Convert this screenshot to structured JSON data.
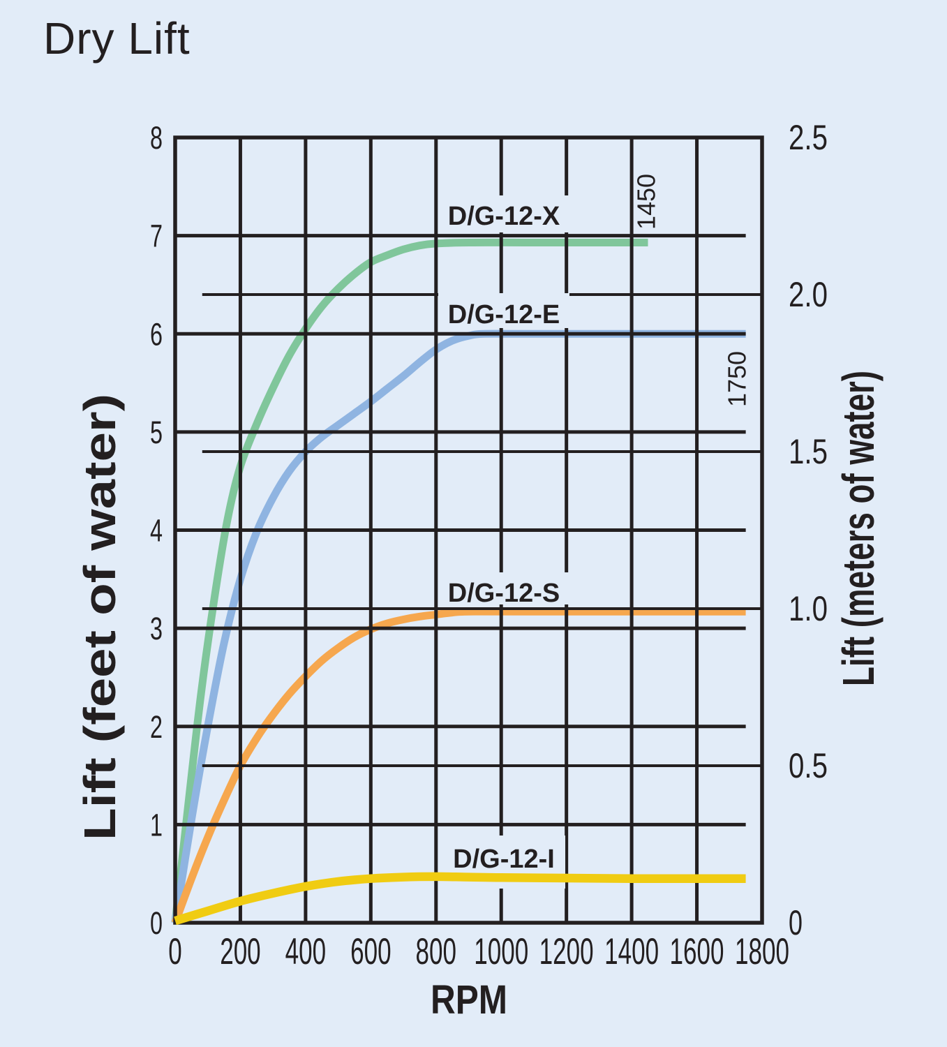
{
  "page": {
    "title": "Dry Lift"
  },
  "colors": {
    "background": "#e2ecf8",
    "ink": "#231f20",
    "green": "#80c69b",
    "blue": "#8fb4e1",
    "orange": "#f6a74e",
    "yellow": "#f0cc12"
  },
  "chart_data": {
    "type": "line",
    "title": "Dry Lift",
    "xlabel": "RPM",
    "ylabel_left": "Lift (feet of water)",
    "ylabel_right": "Lift (meters of water)",
    "xlim": [
      0,
      1800
    ],
    "ylim_left_feet": [
      0,
      8
    ],
    "ylim_right_meters": [
      0,
      2.5
    ],
    "x_ticks": [
      "0",
      "200",
      "400",
      "600",
      "800",
      "1000",
      "1200",
      "1400",
      "1600",
      "1800"
    ],
    "y_ticks_left_feet": [
      "8",
      "7",
      "6",
      "5",
      "4",
      "3",
      "2",
      "1",
      "0"
    ],
    "y_ticks_right_meters": [
      "2.5",
      "2.0",
      "1.5",
      "1.0",
      "0.5",
      "0"
    ],
    "grid": {
      "x_step_rpm": 200,
      "feet_lines": [
        1,
        2,
        3,
        4,
        5,
        6,
        7
      ],
      "meter_lines": [
        0.5,
        1.0,
        1.5,
        2.0
      ],
      "feet_lines_end_rpm": 1750,
      "meter_lines_start_rpm": 83,
      "grid_on": true,
      "legend_position": "inline-curve-labels"
    },
    "series": [
      {
        "name": "D/G-12-X",
        "color_key": "green",
        "end_rpm_label": "1450",
        "plateau_feet": 6.93,
        "points_rpm_feet": [
          [
            0,
            0
          ],
          [
            40,
            1.2
          ],
          [
            80,
            2.35
          ],
          [
            120,
            3.3
          ],
          [
            160,
            4.1
          ],
          [
            200,
            4.65
          ],
          [
            250,
            5.08
          ],
          [
            300,
            5.45
          ],
          [
            350,
            5.78
          ],
          [
            400,
            6.05
          ],
          [
            450,
            6.28
          ],
          [
            500,
            6.46
          ],
          [
            550,
            6.61
          ],
          [
            600,
            6.73
          ],
          [
            650,
            6.8
          ],
          [
            700,
            6.86
          ],
          [
            750,
            6.9
          ],
          [
            800,
            6.92
          ],
          [
            900,
            6.93
          ],
          [
            1100,
            6.93
          ],
          [
            1450,
            6.93
          ]
        ]
      },
      {
        "name": "D/G-12-E",
        "color_key": "blue",
        "end_rpm_label": "1750",
        "plateau_feet": 6.0,
        "points_rpm_feet": [
          [
            0,
            0
          ],
          [
            50,
            1.05
          ],
          [
            100,
            2.0
          ],
          [
            150,
            2.85
          ],
          [
            200,
            3.5
          ],
          [
            250,
            3.98
          ],
          [
            300,
            4.33
          ],
          [
            350,
            4.6
          ],
          [
            400,
            4.8
          ],
          [
            450,
            4.95
          ],
          [
            500,
            5.07
          ],
          [
            550,
            5.19
          ],
          [
            600,
            5.31
          ],
          [
            650,
            5.44
          ],
          [
            700,
            5.57
          ],
          [
            750,
            5.71
          ],
          [
            800,
            5.84
          ],
          [
            850,
            5.93
          ],
          [
            900,
            5.98
          ],
          [
            950,
            6.0
          ],
          [
            1100,
            6.0
          ],
          [
            1750,
            6.0
          ]
        ]
      },
      {
        "name": "D/G-12-S",
        "color_key": "orange",
        "end_rpm_label": null,
        "plateau_feet": 3.17,
        "points_rpm_feet": [
          [
            0,
            0
          ],
          [
            50,
            0.45
          ],
          [
            100,
            0.87
          ],
          [
            150,
            1.25
          ],
          [
            200,
            1.6
          ],
          [
            250,
            1.88
          ],
          [
            300,
            2.12
          ],
          [
            350,
            2.33
          ],
          [
            400,
            2.51
          ],
          [
            450,
            2.67
          ],
          [
            500,
            2.8
          ],
          [
            550,
            2.91
          ],
          [
            600,
            2.99
          ],
          [
            650,
            3.05
          ],
          [
            700,
            3.09
          ],
          [
            750,
            3.12
          ],
          [
            800,
            3.14
          ],
          [
            850,
            3.16
          ],
          [
            900,
            3.17
          ],
          [
            1100,
            3.17
          ],
          [
            1750,
            3.17
          ]
        ]
      },
      {
        "name": "D/G-12-I",
        "color_key": "yellow",
        "end_rpm_label": null,
        "plateau_feet": 0.45,
        "points_rpm_feet": [
          [
            0,
            0.02
          ],
          [
            100,
            0.12
          ],
          [
            200,
            0.22
          ],
          [
            300,
            0.3
          ],
          [
            400,
            0.37
          ],
          [
            500,
            0.42
          ],
          [
            600,
            0.45
          ],
          [
            700,
            0.465
          ],
          [
            800,
            0.47
          ],
          [
            900,
            0.465
          ],
          [
            1000,
            0.46
          ],
          [
            1200,
            0.455
          ],
          [
            1400,
            0.45
          ],
          [
            1600,
            0.45
          ],
          [
            1750,
            0.45
          ]
        ]
      }
    ]
  }
}
